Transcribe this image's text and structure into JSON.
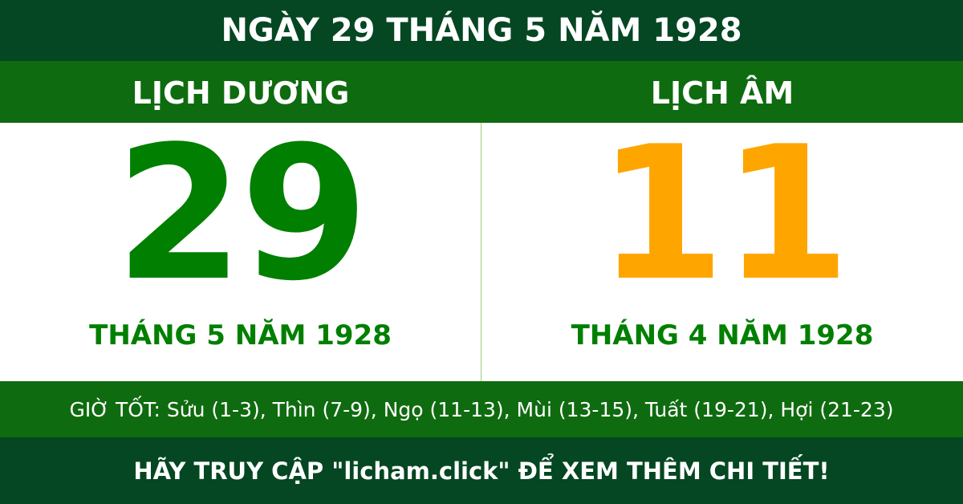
{
  "title": "NGÀY 29 THÁNG 5 NĂM 1928",
  "solar": {
    "label": "LỊCH DƯƠNG",
    "day": "29",
    "month_year": "THÁNG 5 NĂM 1928"
  },
  "lunar": {
    "label": "LỊCH ÂM",
    "day": "11",
    "month_year": "THÁNG 4 NĂM 1928"
  },
  "good_hours": "GIỜ TỐT: Sửu (1-3), Thìn (7-9), Ngọ (11-13), Mùi (13-15), Tuất (19-21), Hợi (21-23)",
  "footer": "HÃY TRUY CẬP \"licham.click\" ĐỂ XEM THÊM CHI TIẾT!",
  "colors": {
    "dark_green": "#044722",
    "green": "#0f6b0f",
    "solar_day": "#007f00",
    "lunar_day": "#ffa500"
  }
}
